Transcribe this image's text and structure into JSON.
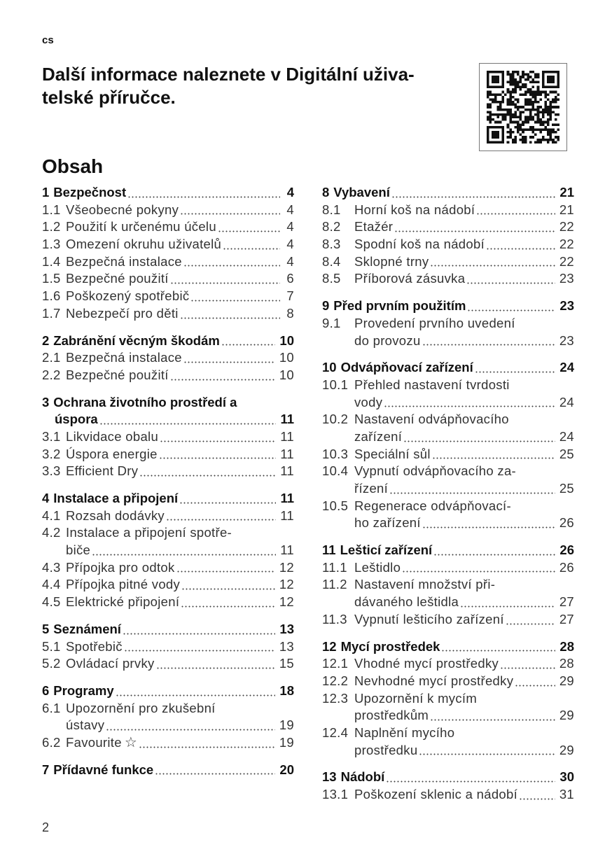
{
  "language_tag": "cs",
  "title": "Další informace naleznete v Digitální uživa-telské příručce.",
  "title_lines": [
    "Další informace naleznete v Digitální uživa-",
    "telské příručce."
  ],
  "toc_heading": "Obsah",
  "page_number": "2",
  "qr_code": "qr-code-icon",
  "toc": {
    "left": [
      {
        "entries": [
          {
            "num": "1",
            "lines": [
              "Bezpečnost"
            ],
            "page": "4",
            "bold": true
          },
          {
            "num": "1.1",
            "lines": [
              "Všeobecné pokyny"
            ],
            "page": "4"
          },
          {
            "num": "1.2",
            "lines": [
              "Použití k určenému účelu"
            ],
            "page": "4"
          },
          {
            "num": "1.3",
            "lines": [
              "Omezení okruhu uživatelů"
            ],
            "page": "4"
          },
          {
            "num": "1.4",
            "lines": [
              "Bezpečná instalace"
            ],
            "page": "4"
          },
          {
            "num": "1.5",
            "lines": [
              "Bezpečné použití"
            ],
            "page": "6"
          },
          {
            "num": "1.6",
            "lines": [
              "Poškozený spotřebič"
            ],
            "page": "7"
          },
          {
            "num": "1.7",
            "lines": [
              "Nebezpečí pro děti"
            ],
            "page": "8"
          }
        ]
      },
      {
        "entries": [
          {
            "num": "2",
            "lines": [
              "Zabránění věcným škodám"
            ],
            "page": "10",
            "bold": true
          },
          {
            "num": "2.1",
            "lines": [
              "Bezpečná instalace"
            ],
            "page": "10"
          },
          {
            "num": "2.2",
            "lines": [
              "Bezpečné použití"
            ],
            "page": "10"
          }
        ]
      },
      {
        "entries": [
          {
            "num": "3",
            "lines": [
              "Ochrana životního prostředí a",
              "úspora"
            ],
            "page": "11",
            "bold": true
          },
          {
            "num": "3.1",
            "lines": [
              "Likvidace obalu"
            ],
            "page": "11"
          },
          {
            "num": "3.2",
            "lines": [
              "Úspora energie"
            ],
            "page": "11"
          },
          {
            "num": "3.3",
            "lines": [
              "Efficient Dry"
            ],
            "page": "11"
          }
        ]
      },
      {
        "entries": [
          {
            "num": "4",
            "lines": [
              "Instalace a připojení"
            ],
            "page": "11",
            "bold": true
          },
          {
            "num": "4.1",
            "lines": [
              "Rozsah dodávky"
            ],
            "page": "11"
          },
          {
            "num": "4.2",
            "lines": [
              "Instalace a připojení spotře-",
              "biče"
            ],
            "page": "11"
          },
          {
            "num": "4.3",
            "lines": [
              "Přípojka pro odtok"
            ],
            "page": "12"
          },
          {
            "num": "4.4",
            "lines": [
              "Přípojka pitné vody"
            ],
            "page": "12"
          },
          {
            "num": "4.5",
            "lines": [
              "Elektrické připojení"
            ],
            "page": "12"
          }
        ]
      },
      {
        "entries": [
          {
            "num": "5",
            "lines": [
              "Seznámení"
            ],
            "page": "13",
            "bold": true
          },
          {
            "num": "5.1",
            "lines": [
              "Spotřebič"
            ],
            "page": "13"
          },
          {
            "num": "5.2",
            "lines": [
              "Ovládací prvky"
            ],
            "page": "15"
          }
        ]
      },
      {
        "entries": [
          {
            "num": "6",
            "lines": [
              "Programy"
            ],
            "page": "18",
            "bold": true
          },
          {
            "num": "6.1",
            "lines": [
              "Upozornění pro zkušební",
              "ústavy"
            ],
            "page": "19"
          },
          {
            "num": "6.2",
            "lines": [
              "Favourite"
            ],
            "page": "19",
            "icon": "star-icon"
          }
        ]
      },
      {
        "entries": [
          {
            "num": "7",
            "lines": [
              "Přídavné funkce"
            ],
            "page": "20",
            "bold": true
          }
        ]
      }
    ],
    "right": [
      {
        "entries": [
          {
            "num": "8",
            "lines": [
              "Vybavení"
            ],
            "page": "21",
            "bold": true
          },
          {
            "num": "8.1",
            "lines": [
              "Horní koš na nádobí"
            ],
            "page": "21"
          },
          {
            "num": "8.2",
            "lines": [
              "Etažér"
            ],
            "page": "22"
          },
          {
            "num": "8.3",
            "lines": [
              "Spodní koš na nádobí"
            ],
            "page": "22"
          },
          {
            "num": "8.4",
            "lines": [
              "Sklopné trny"
            ],
            "page": "22"
          },
          {
            "num": "8.5",
            "lines": [
              "Příborová zásuvka"
            ],
            "page": "23"
          }
        ]
      },
      {
        "entries": [
          {
            "num": "9",
            "lines": [
              "Před prvním použitím"
            ],
            "page": "23",
            "bold": true
          },
          {
            "num": "9.1",
            "lines": [
              "Provedení prvního uvedení",
              "do provozu"
            ],
            "page": "23"
          }
        ]
      },
      {
        "entries": [
          {
            "num": "10",
            "lines": [
              "Odvápňovací zařízení"
            ],
            "page": "24",
            "bold": true
          },
          {
            "num": "10.1",
            "lines": [
              "Přehled nastavení tvrdosti",
              "vody"
            ],
            "page": "24"
          },
          {
            "num": "10.2",
            "lines": [
              "Nastavení odvápňovacího",
              "zařízení"
            ],
            "page": "24"
          },
          {
            "num": "10.3",
            "lines": [
              "Speciální sůl"
            ],
            "page": "25"
          },
          {
            "num": "10.4",
            "lines": [
              "Vypnutí odvápňovacího za-",
              "řízení"
            ],
            "page": "25"
          },
          {
            "num": "10.5",
            "lines": [
              "Regenerace odvápňovací-",
              "ho zařízení"
            ],
            "page": "26"
          }
        ]
      },
      {
        "entries": [
          {
            "num": "11",
            "lines": [
              "Lešticí zařízení"
            ],
            "page": "26",
            "bold": true
          },
          {
            "num": "11.1",
            "lines": [
              "Leštidlo"
            ],
            "page": "26"
          },
          {
            "num": "11.2",
            "lines": [
              "Nastavení množství při-",
              "dávaného leštidla"
            ],
            "page": "27"
          },
          {
            "num": "11.3",
            "lines": [
              "Vypnutí lešticího zařízení"
            ],
            "page": "27"
          }
        ]
      },
      {
        "entries": [
          {
            "num": "12",
            "lines": [
              "Mycí prostředek"
            ],
            "page": "28",
            "bold": true
          },
          {
            "num": "12.1",
            "lines": [
              "Vhodné mycí prostředky"
            ],
            "page": "28"
          },
          {
            "num": "12.2",
            "lines": [
              "Nevhodné mycí prostředky"
            ],
            "page": "29"
          },
          {
            "num": "12.3",
            "lines": [
              "Upozornění k mycím",
              "prostředkům"
            ],
            "page": "29"
          },
          {
            "num": "12.4",
            "lines": [
              "Naplnění mycího",
              "prostředku"
            ],
            "page": "29"
          }
        ]
      },
      {
        "entries": [
          {
            "num": "13",
            "lines": [
              "Nádobí"
            ],
            "page": "30",
            "bold": true
          },
          {
            "num": "13.1",
            "lines": [
              "Poškození sklenic a nádobí"
            ],
            "page": "31"
          }
        ]
      }
    ]
  }
}
